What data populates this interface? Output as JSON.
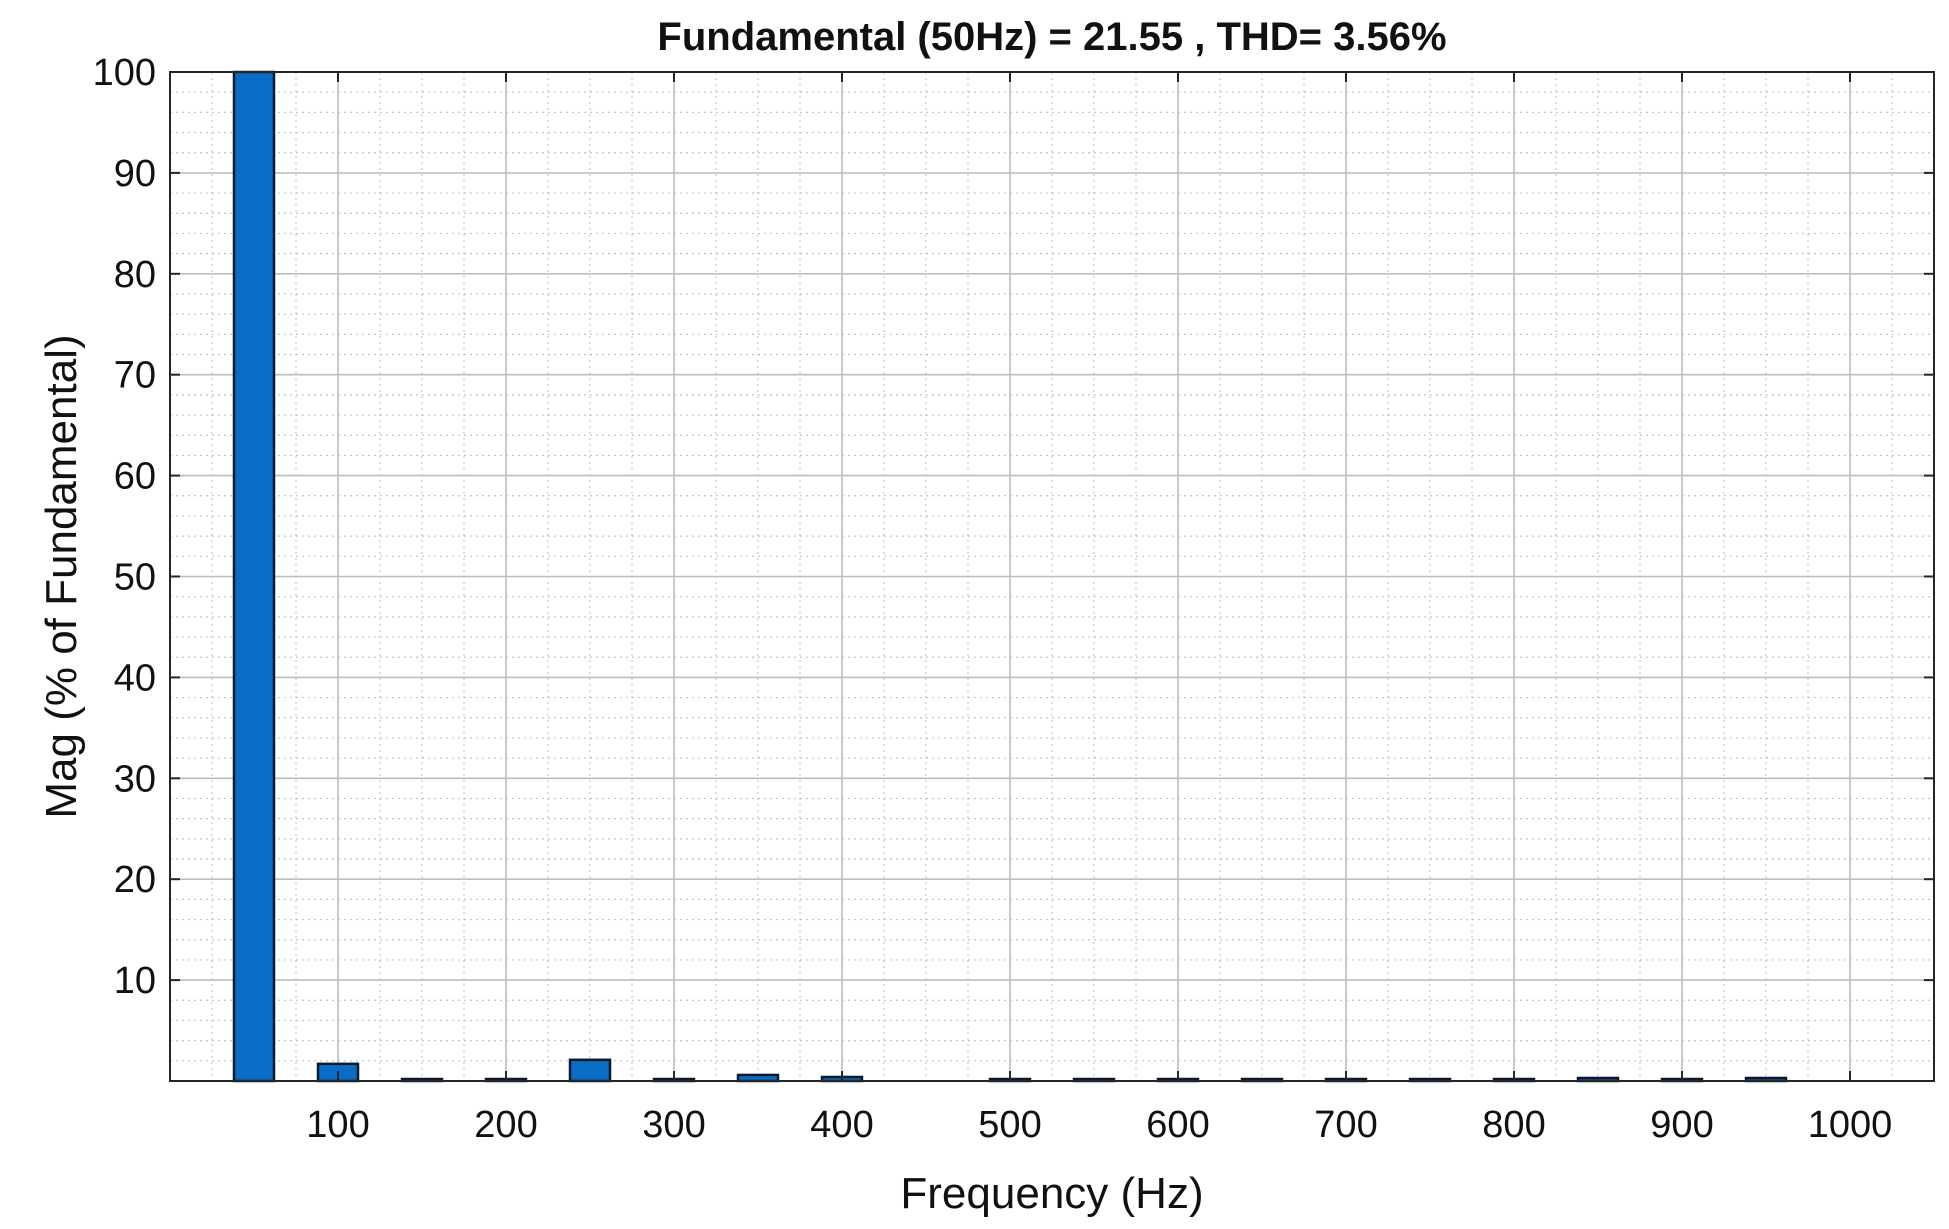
{
  "chart_data": {
    "type": "bar",
    "title": "Fundamental (50Hz) = 21.55 , THD= 3.56%",
    "xlabel": "Frequency (Hz)",
    "ylabel": "Mag (% of Fundamental)",
    "xlim": [
      0,
      1050
    ],
    "ylim": [
      0,
      100
    ],
    "x_ticks": [
      100,
      200,
      300,
      400,
      500,
      600,
      700,
      800,
      900,
      1000
    ],
    "y_ticks": [
      10,
      20,
      30,
      40,
      50,
      60,
      70,
      80,
      90,
      100
    ],
    "grid": true,
    "minor_grid": true,
    "bar_color": "#0a6cc4",
    "bar_edge_color": "#0b1a2e",
    "x": [
      0,
      50,
      100,
      150,
      200,
      250,
      300,
      350,
      400,
      450,
      500,
      550,
      600,
      650,
      700,
      750,
      800,
      850,
      900,
      950,
      1000
    ],
    "values": [
      0.0,
      100,
      1.7,
      0.1,
      0.1,
      2.1,
      0.1,
      0.6,
      0.4,
      0.0,
      0.1,
      0.1,
      0.1,
      0.1,
      0.1,
      0.1,
      0.1,
      0.3,
      0.1,
      0.3,
      0.0
    ]
  }
}
